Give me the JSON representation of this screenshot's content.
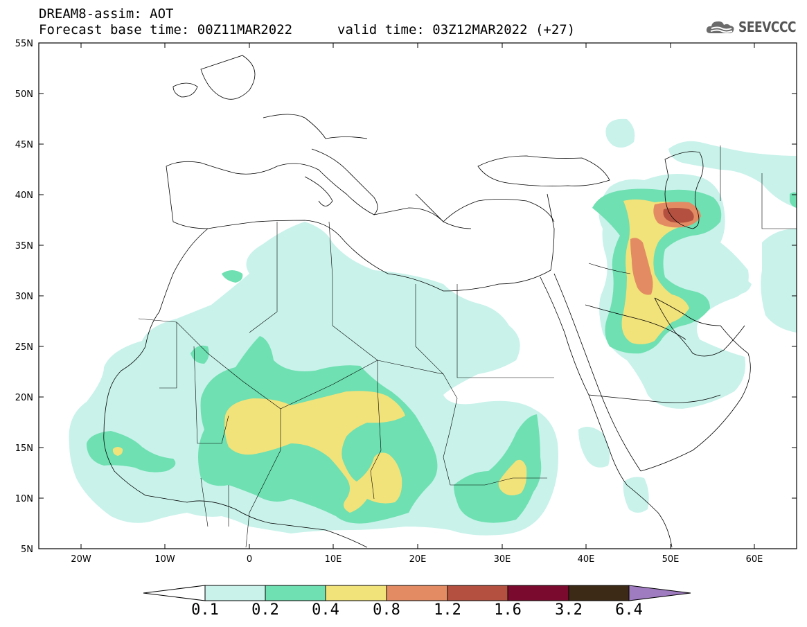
{
  "header": {
    "title": "DREAM8-assim: AOT",
    "base_time": "Forecast base time: 00Z11MAR2022",
    "valid_time": "valid time: 03Z12MAR2022 (+27)"
  },
  "logo": {
    "text": "SEEVCCC",
    "icon": "cloud-icon"
  },
  "map": {
    "projection": "lat-lon",
    "lat_range": [
      5,
      55
    ],
    "lon_range": [
      -25,
      65
    ],
    "lat_ticks": [
      "55N",
      "50N",
      "45N",
      "40N",
      "35N",
      "30N",
      "25N",
      "20N",
      "15N",
      "10N",
      "5N"
    ],
    "lon_ticks": [
      "20W",
      "10W",
      "0",
      "10E",
      "20E",
      "30E",
      "40E",
      "50E",
      "60E"
    ]
  },
  "colorbar": {
    "levels": [
      "0.1",
      "0.2",
      "0.4",
      "0.8",
      "1.2",
      "1.6",
      "3.2",
      "6.4"
    ],
    "colors": {
      "lt_0.1": "#ffffff",
      "0.1-0.2": "#c8f2ea",
      "0.2-0.4": "#6ee0b1",
      "0.4-0.8": "#f2e27a",
      "0.8-1.2": "#e38b63",
      "1.2-1.6": "#b4503f",
      "1.6-3.2": "#7a0b2e",
      "3.2-6.4": "#3c2a16",
      "gt_6.4": "#9f7bbf"
    }
  }
}
